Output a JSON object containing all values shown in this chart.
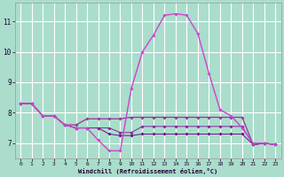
{
  "xlabel": "Windchill (Refroidissement éolien,°C)",
  "bg_color": "#aaddcc",
  "grid_color": "#ffffff",
  "ylim": [
    6.5,
    11.6
  ],
  "xlim": [
    -0.5,
    23.5
  ],
  "yticks": [
    7,
    8,
    9,
    10,
    11
  ],
  "xticks": [
    0,
    1,
    2,
    3,
    4,
    5,
    6,
    7,
    8,
    9,
    10,
    11,
    12,
    13,
    14,
    15,
    16,
    17,
    18,
    19,
    20,
    21,
    22,
    23
  ],
  "series1_x": [
    0,
    1,
    2,
    3,
    4,
    5,
    6,
    7,
    8,
    9,
    10,
    11,
    12,
    13,
    14,
    15,
    16,
    17,
    18,
    19,
    20,
    21,
    22,
    23
  ],
  "series1_y": [
    8.3,
    8.3,
    7.9,
    7.9,
    7.6,
    7.5,
    7.5,
    7.1,
    6.75,
    6.75,
    8.8,
    10.0,
    10.55,
    11.2,
    11.25,
    11.2,
    10.6,
    9.3,
    8.1,
    7.9,
    7.5,
    7.0,
    7.0,
    6.95
  ],
  "series2_x": [
    0,
    1,
    2,
    3,
    4,
    5,
    6,
    7,
    8,
    9,
    10,
    11,
    12,
    13,
    14,
    15,
    16,
    17,
    18,
    19,
    20,
    21,
    22,
    23
  ],
  "series2_y": [
    8.3,
    8.3,
    7.9,
    7.9,
    7.6,
    7.6,
    7.8,
    7.8,
    7.8,
    7.8,
    7.85,
    7.85,
    7.85,
    7.85,
    7.85,
    7.85,
    7.85,
    7.85,
    7.85,
    7.85,
    7.85,
    6.95,
    7.0,
    6.95
  ],
  "series3_x": [
    0,
    1,
    2,
    3,
    4,
    5,
    6,
    7,
    8,
    9,
    10,
    11,
    12,
    13,
    14,
    15,
    16,
    17,
    18,
    19,
    20,
    21,
    22,
    23
  ],
  "series3_y": [
    8.3,
    8.3,
    7.9,
    7.9,
    7.6,
    7.5,
    7.5,
    7.5,
    7.5,
    7.35,
    7.35,
    7.55,
    7.55,
    7.55,
    7.55,
    7.55,
    7.55,
    7.55,
    7.55,
    7.55,
    7.55,
    6.95,
    7.0,
    6.95
  ],
  "series4_x": [
    0,
    1,
    2,
    3,
    4,
    5,
    6,
    7,
    8,
    9,
    10,
    11,
    12,
    13,
    14,
    15,
    16,
    17,
    18,
    19,
    20,
    21,
    22,
    23
  ],
  "series4_y": [
    8.3,
    8.3,
    7.9,
    7.9,
    7.6,
    7.5,
    7.5,
    7.5,
    7.3,
    7.25,
    7.25,
    7.3,
    7.3,
    7.3,
    7.3,
    7.3,
    7.3,
    7.3,
    7.3,
    7.3,
    7.3,
    6.95,
    7.0,
    6.95
  ],
  "lc_main": "#cc44cc",
  "lc_2": "#993399",
  "lc_3": "#882299",
  "lc_4": "#661188"
}
